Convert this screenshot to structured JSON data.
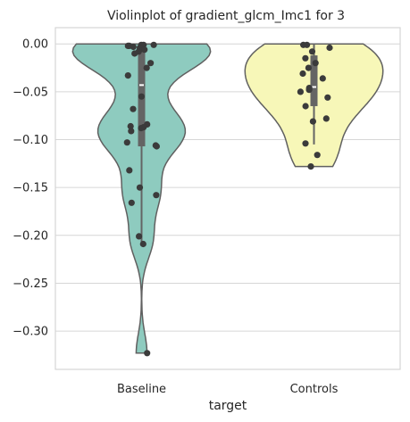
{
  "chart_data": {
    "type": "violin",
    "title": "Violinplot of gradient_glcm_Imc1 for 3",
    "xlabel": "target",
    "ylabel": "",
    "ylim": [
      -0.34,
      0.017
    ],
    "yticks": [
      0.0,
      -0.05,
      -0.1,
      -0.15,
      -0.2,
      -0.25,
      -0.3
    ],
    "ytick_labels": [
      "0.00",
      "−0.05",
      "−0.10",
      "−0.15",
      "−0.20",
      "−0.25",
      "−0.30"
    ],
    "categories": [
      "Baseline",
      "Controls"
    ],
    "grid": "horizontal",
    "series": [
      {
        "category": "Baseline",
        "color": "#8ecbbf",
        "range": [
          -0.323,
          0.0
        ],
        "q1": -0.107,
        "median": -0.043,
        "q3": -0.002,
        "whisker": [
          -0.208,
          0.0
        ],
        "points": [
          -0.001,
          -0.001,
          -0.002,
          -0.003,
          -0.004,
          -0.005,
          -0.002,
          -0.001,
          -0.006,
          -0.008,
          -0.01,
          -0.02,
          -0.025,
          -0.033,
          -0.055,
          -0.068,
          -0.084,
          -0.086,
          -0.087,
          -0.088,
          -0.091,
          -0.103,
          -0.106,
          -0.107,
          -0.132,
          -0.15,
          -0.158,
          -0.166,
          -0.201,
          -0.209,
          -0.323
        ]
      },
      {
        "category": "Controls",
        "color": "#f7f7b8",
        "range": [
          -0.128,
          0.0
        ],
        "q1": -0.065,
        "median": -0.045,
        "q3": -0.012,
        "whisker": [
          -0.105,
          0.0
        ],
        "points": [
          -0.001,
          -0.001,
          -0.004,
          -0.008,
          -0.015,
          -0.02,
          -0.025,
          -0.031,
          -0.036,
          -0.046,
          -0.048,
          -0.05,
          -0.056,
          -0.065,
          -0.078,
          -0.081,
          -0.104,
          -0.116,
          -0.128
        ]
      }
    ]
  }
}
